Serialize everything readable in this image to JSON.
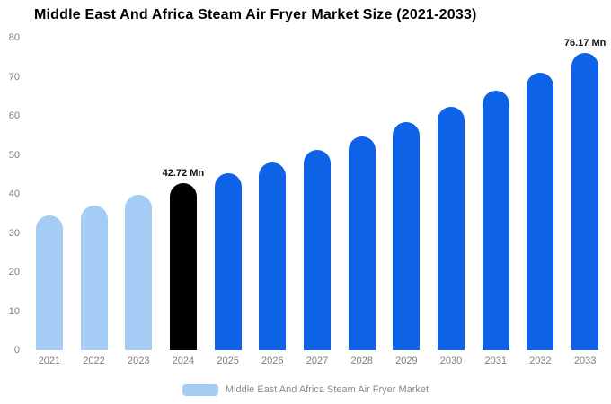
{
  "title": "Middle East And Africa Steam Air Fryer Market Size (2021-2033)",
  "chart_data": {
    "type": "bar",
    "title": "Middle East And Africa Steam Air Fryer Market Size (2021-2033)",
    "categories": [
      "2021",
      "2022",
      "2023",
      "2024",
      "2025",
      "2026",
      "2027",
      "2028",
      "2029",
      "2030",
      "2031",
      "2032",
      "2033"
    ],
    "values": [
      34.5,
      37.1,
      39.7,
      42.72,
      45.2,
      48.1,
      51.3,
      54.7,
      58.3,
      62.2,
      66.4,
      71.0,
      76.17
    ],
    "unit": "Mn",
    "xlabel": "",
    "ylabel": "",
    "ylim": [
      0,
      80
    ],
    "yticks": [
      0,
      10,
      20,
      30,
      40,
      50,
      60,
      70,
      80
    ],
    "grid": "off",
    "legend_position": "bottom",
    "colors": {
      "historical": "#a4ccf4",
      "highlight": "#000000",
      "forecast": "#0d62e8"
    },
    "color_roles": [
      "historical",
      "historical",
      "historical",
      "highlight",
      "forecast",
      "forecast",
      "forecast",
      "forecast",
      "forecast",
      "forecast",
      "forecast",
      "forecast",
      "forecast"
    ],
    "annotations": [
      {
        "index": 3,
        "label": "42.72 Mn"
      },
      {
        "index": 12,
        "label": "76.17 Mn"
      }
    ]
  },
  "legend": {
    "label": "Middle East And Africa Steam Air Fryer Market",
    "swatch_color": "#a4ccf4"
  }
}
